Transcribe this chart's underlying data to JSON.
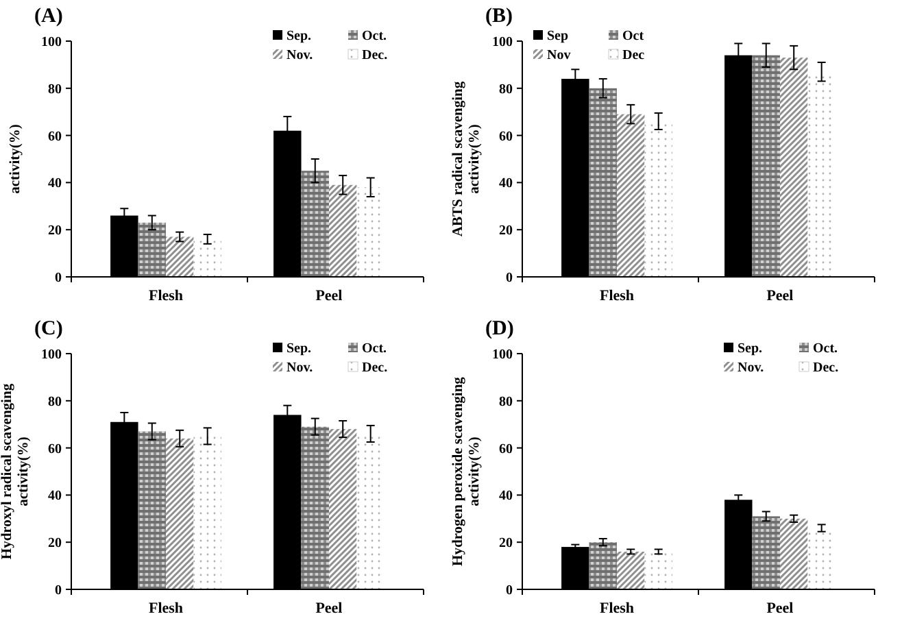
{
  "chart_data": [
    {
      "type": "bar",
      "title": "(A)",
      "ylabel": "activity(%)",
      "categories": [
        "Flesh",
        "Peel"
      ],
      "ylim": [
        0,
        100
      ],
      "yticks": [
        0,
        20,
        40,
        60,
        80,
        100
      ],
      "legend": "top right",
      "series": [
        {
          "name": "Sep.",
          "color": "#000000",
          "values": [
            26,
            62
          ],
          "errors": [
            3,
            6
          ]
        },
        {
          "name": "Oct.",
          "color": "#707070",
          "values": [
            23,
            45
          ],
          "errors": [
            3,
            5
          ]
        },
        {
          "name": "Nov.",
          "color": "#909090",
          "values": [
            17,
            39
          ],
          "errors": [
            2,
            4
          ]
        },
        {
          "name": "Dec.",
          "color": "#b0b0b0",
          "values": [
            16,
            38
          ],
          "errors": [
            2,
            4
          ]
        }
      ]
    },
    {
      "type": "bar",
      "title": "(B)",
      "ylabel": "ABTS radical scavenging\nactivity(%)",
      "categories": [
        "Flesh",
        "Peel"
      ],
      "ylim": [
        0,
        100
      ],
      "yticks": [
        0,
        20,
        40,
        60,
        80,
        100
      ],
      "legend": "top left",
      "series": [
        {
          "name": "Sep",
          "color": "#000000",
          "values": [
            84,
            94
          ],
          "errors": [
            4,
            5
          ]
        },
        {
          "name": "Oct",
          "color": "#707070",
          "values": [
            80,
            94
          ],
          "errors": [
            4,
            5
          ]
        },
        {
          "name": "Nov",
          "color": "#909090",
          "values": [
            69,
            93
          ],
          "errors": [
            4,
            5
          ]
        },
        {
          "name": "Dec",
          "color": "#b0b0b0",
          "values": [
            66,
            87
          ],
          "errors": [
            3.5,
            4
          ]
        }
      ]
    },
    {
      "type": "bar",
      "title": "(C)",
      "ylabel": "Hydroxyl radical scavenging\nactivity(%)",
      "categories": [
        "Flesh",
        "Peel"
      ],
      "ylim": [
        0,
        100
      ],
      "yticks": [
        0,
        20,
        40,
        60,
        80,
        100
      ],
      "legend": "top right",
      "series": [
        {
          "name": "Sep.",
          "color": "#000000",
          "values": [
            71,
            74
          ],
          "errors": [
            4,
            4
          ]
        },
        {
          "name": "Oct.",
          "color": "#707070",
          "values": [
            67,
            69
          ],
          "errors": [
            3.5,
            3.5
          ]
        },
        {
          "name": "Nov.",
          "color": "#909090",
          "values": [
            64,
            68
          ],
          "errors": [
            3.5,
            3.5
          ]
        },
        {
          "name": "Dec.",
          "color": "#b0b0b0",
          "values": [
            65,
            66
          ],
          "errors": [
            3.5,
            3.5
          ]
        }
      ]
    },
    {
      "type": "bar",
      "title": "(D)",
      "ylabel": "Hydrogen peroxide scavenging\nactivity(%)",
      "categories": [
        "Flesh",
        "Peel"
      ],
      "ylim": [
        0,
        100
      ],
      "yticks": [
        0,
        20,
        40,
        60,
        80,
        100
      ],
      "legend": "top right",
      "series": [
        {
          "name": "Sep.",
          "color": "#000000",
          "values": [
            18,
            38
          ],
          "errors": [
            1,
            2
          ]
        },
        {
          "name": "Oct.",
          "color": "#707070",
          "values": [
            20,
            31
          ],
          "errors": [
            1.5,
            2
          ]
        },
        {
          "name": "Nov.",
          "color": "#909090",
          "values": [
            16,
            30
          ],
          "errors": [
            1,
            1.5
          ]
        },
        {
          "name": "Dec.",
          "color": "#b0b0b0",
          "values": [
            16,
            26
          ],
          "errors": [
            1,
            1.5
          ]
        }
      ]
    }
  ]
}
